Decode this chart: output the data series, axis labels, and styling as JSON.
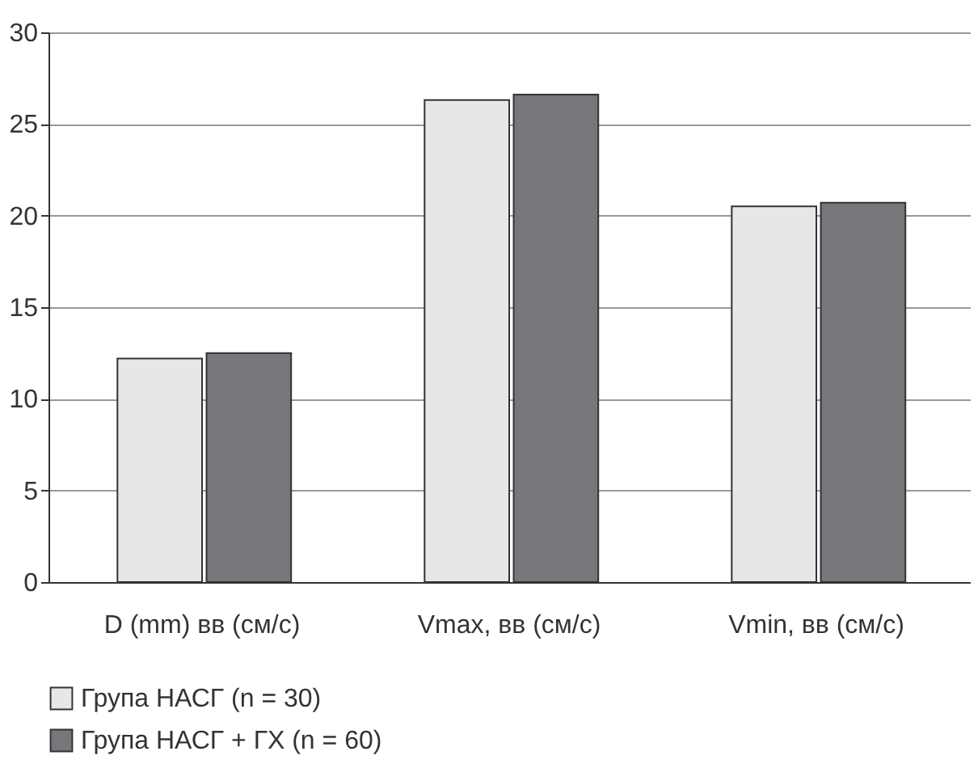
{
  "chart_data": {
    "type": "bar",
    "categories": [
      "D (mm) вв (см/с)",
      "Vmax, вв (см/с)",
      "Vmin, вв (см/с)"
    ],
    "series": [
      {
        "name": "Група НАСГ (n = 30)",
        "color": "#e6e7e8",
        "values": [
          12.2,
          26.3,
          20.5
        ]
      },
      {
        "name": "Група НАСГ +  ГХ (n = 60)",
        "color": "#76777a",
        "values": [
          12.5,
          26.6,
          20.7
        ]
      }
    ],
    "ylim": [
      0,
      30
    ],
    "yticks": [
      0,
      5,
      10,
      15,
      20,
      25,
      30
    ],
    "grid": "y",
    "legend": "bottom left"
  }
}
